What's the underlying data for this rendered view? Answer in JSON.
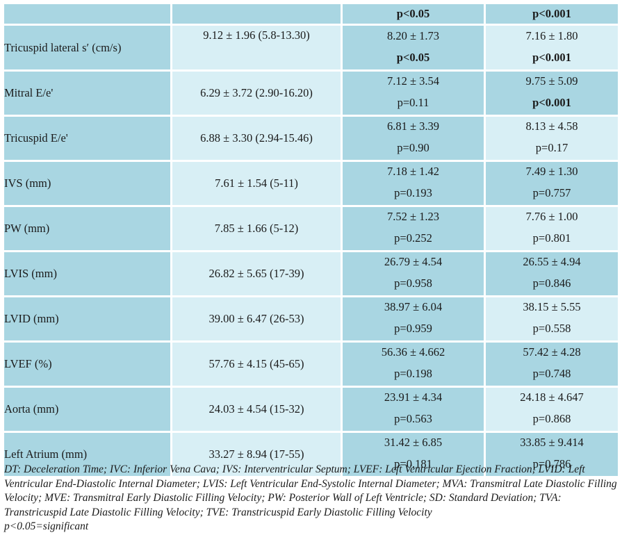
{
  "header": {
    "col1": "",
    "col2": "",
    "col3": "p<0.05",
    "col4": "p<0.001"
  },
  "rows": [
    {
      "label": "Tricuspid lateral s′ (cm/s)",
      "overall": "9.12 ± 1.96 (5.8-13.30)",
      "g1_value": "8.20 ± 1.73",
      "g1_p": "p<0.05",
      "g2_value": "7.16 ± 1.80",
      "g2_p": "p<0.001"
    },
    {
      "label": "Mitral E/e'",
      "overall": "6.29 ± 3.72 (2.90-16.20)",
      "g1_value": "7.12 ± 3.54",
      "g1_p": "p=0.11",
      "g2_value": "9.75 ± 5.09",
      "g2_p": "p<0.001"
    },
    {
      "label": "Tricuspid E/e'",
      "overall": "6.88 ± 3.30 (2.94-15.46)",
      "g1_value": "6.81 ± 3.39",
      "g1_p": "p=0.90",
      "g2_value": "8.13 ± 4.58",
      "g2_p": "p=0.17"
    },
    {
      "label": "IVS (mm)",
      "overall": "7.61 ± 1.54 (5-11)",
      "g1_value": "7.18 ± 1.42",
      "g1_p": "p=0.193",
      "g2_value": "7.49 ± 1.30",
      "g2_p": "p=0.757"
    },
    {
      "label": "PW (mm)",
      "overall": "7.85 ± 1.66 (5-12)",
      "g1_value": "7.52 ± 1.23",
      "g1_p": "p=0.252",
      "g2_value": "7.76 ± 1.00",
      "g2_p": "p=0.801"
    },
    {
      "label": "LVIS (mm)",
      "overall": "26.82 ± 5.65 (17-39)",
      "g1_value": "26.79 ± 4.54",
      "g1_p": "p=0.958",
      "g2_value": "26.55 ± 4.94",
      "g2_p": "p=0.846"
    },
    {
      "label": "LVID (mm)",
      "overall": "39.00 ± 6.47 (26-53)",
      "g1_value": "38.97 ± 6.04",
      "g1_p": "p=0.959",
      "g2_value": "38.15 ± 5.55",
      "g2_p": "p=0.558"
    },
    {
      "label": "LVEF (%)",
      "overall": "57.76 ± 4.15 (45-65)",
      "g1_value": "56.36 ± 4.662",
      "g1_p": "p=0.198",
      "g2_value": "57.42 ± 4.28",
      "g2_p": "p=0.748"
    },
    {
      "label": "Aorta (mm)",
      "overall": "24.03 ± 4.54 (15-32)",
      "g1_value": "23.91 ± 4.34",
      "g1_p": "p=0.563",
      "g2_value": "24.18 ± 4.647",
      "g2_p": "p=0.868"
    },
    {
      "label": "Left Atrium (mm)",
      "overall": "33.27 ± 8.94 (17-55)",
      "g1_value": "31.42 ± 6.85",
      "g1_p": "p=0.181",
      "g2_value": "33.85 ± 9.414",
      "g2_p": "p=0.786"
    }
  ],
  "footnote": {
    "abbreviations": "DT: Deceleration Time; IVC: Inferior Vena Cava; IVS: Interventricular Septum; LVEF: Left Ventricular Ejection Fraction; LVID: Left Ventricular End-Diastolic Internal Diameter; LVIS: Left Ventricular End-Systolic Internal Diameter; MVA: Transmitral Late Diastolic Filling Velocity; MVE: Transmitral Early Diastolic Filling Velocity; PW: Posterior Wall of Left Ventricle; SD: Standard Deviation; TVA: Transtricuspid Late Diastolic Filling Velocity; TVE: Transtricuspid Early Diastolic Filling Velocity",
    "significance": "p<0.05=significant"
  },
  "colors": {
    "dark_cell": "#a9d6e2",
    "light_cell": "#d8eff5"
  }
}
